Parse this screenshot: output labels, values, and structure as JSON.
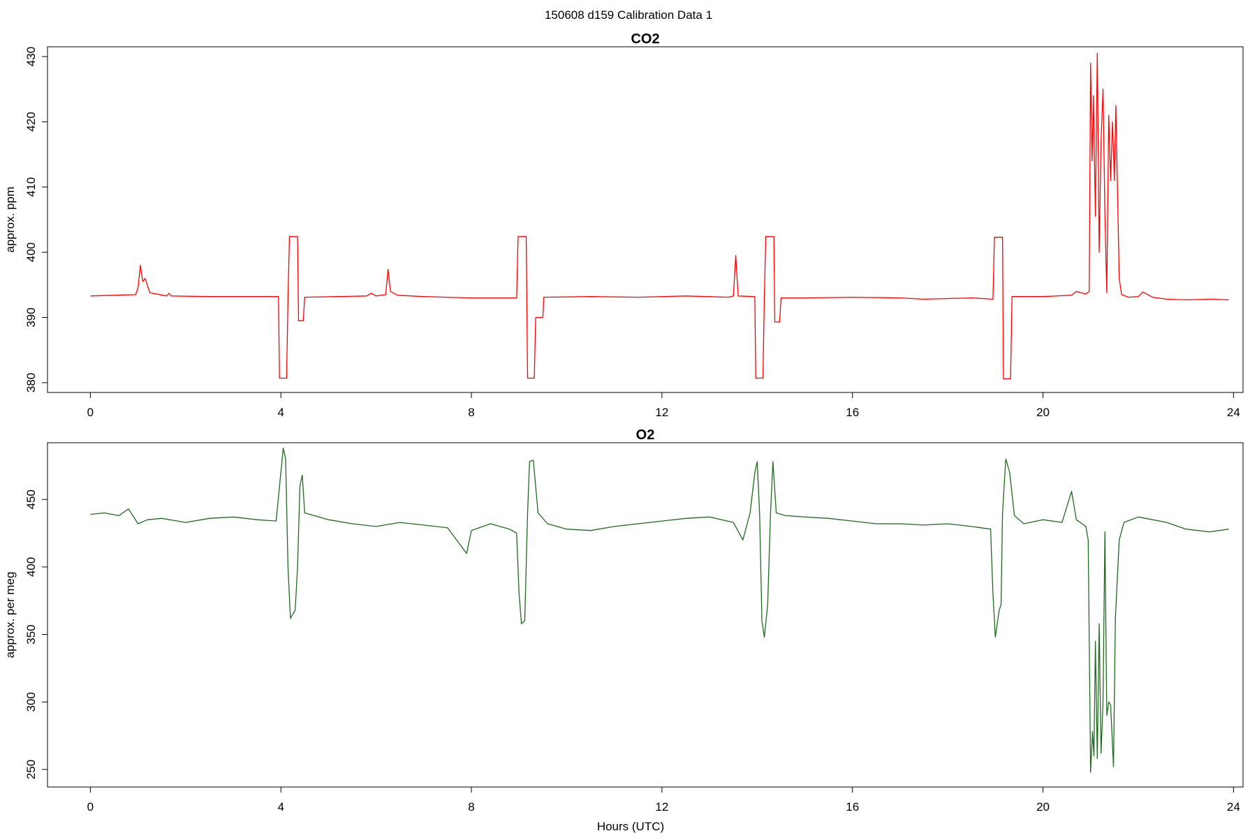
{
  "header": {
    "title": "150608   d159   Calibration Data 1"
  },
  "x_axis": {
    "label": "Hours (UTC)"
  },
  "chart_data": [
    {
      "type": "line",
      "title": "CO2",
      "ylabel": "approx. ppm",
      "xlabel": "",
      "color": "#ff0000",
      "xlim": [
        -0.9,
        24.2
      ],
      "ylim": [
        378.5,
        431.5
      ],
      "x_ticks": [
        0,
        4,
        8,
        12,
        16,
        20,
        24
      ],
      "y_ticks": [
        380,
        390,
        400,
        410,
        420,
        430
      ],
      "grid": false,
      "series": [
        {
          "points": [
            [
              0.0,
              393.3
            ],
            [
              0.5,
              393.4
            ],
            [
              0.95,
              393.5
            ],
            [
              1.0,
              394.5
            ],
            [
              1.05,
              398.0
            ],
            [
              1.1,
              395.5
            ],
            [
              1.15,
              396.0
            ],
            [
              1.25,
              393.8
            ],
            [
              1.6,
              393.3
            ],
            [
              1.65,
              393.7
            ],
            [
              1.7,
              393.3
            ],
            [
              2.5,
              393.2
            ],
            [
              3.5,
              393.2
            ],
            [
              3.95,
              393.2
            ],
            [
              3.97,
              380.7
            ],
            [
              4.12,
              380.7
            ],
            [
              4.15,
              393.0
            ],
            [
              4.18,
              402.4
            ],
            [
              4.35,
              402.4
            ],
            [
              4.37,
              389.5
            ],
            [
              4.47,
              389.5
            ],
            [
              4.5,
              393.1
            ],
            [
              5.2,
              393.2
            ],
            [
              5.8,
              393.3
            ],
            [
              5.9,
              393.7
            ],
            [
              6.0,
              393.3
            ],
            [
              6.2,
              393.5
            ],
            [
              6.25,
              397.4
            ],
            [
              6.3,
              394.0
            ],
            [
              6.45,
              393.4
            ],
            [
              7.0,
              393.2
            ],
            [
              8.0,
              393.0
            ],
            [
              8.5,
              393.0
            ],
            [
              8.95,
              393.0
            ],
            [
              8.98,
              402.4
            ],
            [
              9.15,
              402.4
            ],
            [
              9.18,
              380.7
            ],
            [
              9.32,
              380.7
            ],
            [
              9.35,
              390.0
            ],
            [
              9.5,
              390.0
            ],
            [
              9.52,
              393.1
            ],
            [
              10.5,
              393.2
            ],
            [
              11.5,
              393.1
            ],
            [
              12.5,
              393.3
            ],
            [
              13.4,
              393.1
            ],
            [
              13.5,
              393.3
            ],
            [
              13.55,
              399.5
            ],
            [
              13.6,
              393.3
            ],
            [
              13.95,
              393.2
            ],
            [
              13.97,
              380.7
            ],
            [
              14.12,
              380.7
            ],
            [
              14.15,
              393.0
            ],
            [
              14.18,
              402.4
            ],
            [
              14.35,
              402.4
            ],
            [
              14.37,
              389.3
            ],
            [
              14.47,
              389.3
            ],
            [
              14.5,
              393.0
            ],
            [
              15.0,
              393.0
            ],
            [
              16.0,
              393.1
            ],
            [
              17.0,
              393.0
            ],
            [
              17.5,
              392.8
            ],
            [
              18.5,
              393.0
            ],
            [
              18.95,
              392.8
            ],
            [
              18.98,
              402.3
            ],
            [
              19.15,
              402.3
            ],
            [
              19.17,
              380.6
            ],
            [
              19.32,
              380.6
            ],
            [
              19.35,
              393.2
            ],
            [
              20.0,
              393.2
            ],
            [
              20.6,
              393.4
            ],
            [
              20.7,
              394.0
            ],
            [
              20.9,
              393.6
            ],
            [
              20.97,
              394.0
            ],
            [
              21.0,
              429.0
            ],
            [
              21.03,
              414.0
            ],
            [
              21.06,
              424.0
            ],
            [
              21.1,
              405.5
            ],
            [
              21.14,
              430.5
            ],
            [
              21.18,
              400.0
            ],
            [
              21.22,
              417.0
            ],
            [
              21.26,
              425.0
            ],
            [
              21.3,
              406.0
            ],
            [
              21.34,
              393.8
            ],
            [
              21.38,
              421.0
            ],
            [
              21.42,
              411.0
            ],
            [
              21.46,
              420.0
            ],
            [
              21.5,
              411.0
            ],
            [
              21.53,
              422.5
            ],
            [
              21.6,
              396.0
            ],
            [
              21.65,
              393.5
            ],
            [
              21.8,
              393.1
            ],
            [
              22.0,
              393.2
            ],
            [
              22.1,
              393.9
            ],
            [
              22.3,
              393.1
            ],
            [
              22.6,
              392.8
            ],
            [
              23.0,
              392.7
            ],
            [
              23.5,
              392.8
            ],
            [
              23.9,
              392.7
            ]
          ]
        }
      ]
    },
    {
      "type": "line",
      "title": "O2",
      "ylabel": "approx. per meg",
      "xlabel": "Hours (UTC)",
      "color": "#1e6b1e",
      "xlim": [
        -0.9,
        24.2
      ],
      "ylim": [
        237,
        492
      ],
      "x_ticks": [
        0,
        4,
        8,
        12,
        16,
        20,
        24
      ],
      "y_ticks": [
        250,
        300,
        350,
        400,
        450
      ],
      "grid": false,
      "series": [
        {
          "points": [
            [
              0.0,
              439
            ],
            [
              0.3,
              440
            ],
            [
              0.6,
              438
            ],
            [
              0.8,
              443
            ],
            [
              1.0,
              432
            ],
            [
              1.2,
              435
            ],
            [
              1.5,
              436
            ],
            [
              2.0,
              433
            ],
            [
              2.5,
              436
            ],
            [
              3.0,
              437
            ],
            [
              3.5,
              435
            ],
            [
              3.9,
              434
            ],
            [
              4.0,
              470
            ],
            [
              4.05,
              488
            ],
            [
              4.1,
              480
            ],
            [
              4.15,
              400
            ],
            [
              4.2,
              362
            ],
            [
              4.3,
              368
            ],
            [
              4.35,
              400
            ],
            [
              4.4,
              460
            ],
            [
              4.45,
              468
            ],
            [
              4.5,
              440
            ],
            [
              5.0,
              435
            ],
            [
              5.5,
              432
            ],
            [
              6.0,
              430
            ],
            [
              6.5,
              433
            ],
            [
              7.0,
              431
            ],
            [
              7.5,
              429
            ],
            [
              7.9,
              410
            ],
            [
              8.0,
              427
            ],
            [
              8.4,
              432
            ],
            [
              8.8,
              428
            ],
            [
              8.95,
              425
            ],
            [
              9.0,
              380
            ],
            [
              9.05,
              358
            ],
            [
              9.12,
              360
            ],
            [
              9.18,
              440
            ],
            [
              9.22,
              478
            ],
            [
              9.3,
              479
            ],
            [
              9.4,
              440
            ],
            [
              9.6,
              432
            ],
            [
              10.0,
              428
            ],
            [
              10.5,
              427
            ],
            [
              11.0,
              430
            ],
            [
              11.5,
              432
            ],
            [
              12.0,
              434
            ],
            [
              12.5,
              436
            ],
            [
              13.0,
              437
            ],
            [
              13.5,
              433
            ],
            [
              13.7,
              420
            ],
            [
              13.85,
              440
            ],
            [
              13.95,
              470
            ],
            [
              14.0,
              478
            ],
            [
              14.05,
              440
            ],
            [
              14.1,
              360
            ],
            [
              14.15,
              348
            ],
            [
              14.22,
              372
            ],
            [
              14.28,
              440
            ],
            [
              14.33,
              478
            ],
            [
              14.4,
              440
            ],
            [
              14.6,
              438
            ],
            [
              15.0,
              437
            ],
            [
              15.5,
              436
            ],
            [
              16.0,
              434
            ],
            [
              16.5,
              432
            ],
            [
              17.0,
              432
            ],
            [
              17.5,
              431
            ],
            [
              18.0,
              432
            ],
            [
              18.5,
              430
            ],
            [
              18.9,
              428
            ],
            [
              18.95,
              380
            ],
            [
              19.0,
              348
            ],
            [
              19.08,
              368
            ],
            [
              19.12,
              372
            ],
            [
              19.15,
              440
            ],
            [
              19.22,
              480
            ],
            [
              19.3,
              470
            ],
            [
              19.4,
              438
            ],
            [
              19.6,
              432
            ],
            [
              20.0,
              435
            ],
            [
              20.4,
              433
            ],
            [
              20.6,
              456
            ],
            [
              20.7,
              435
            ],
            [
              20.9,
              430
            ],
            [
              20.95,
              420
            ],
            [
              21.0,
              248
            ],
            [
              21.04,
              278
            ],
            [
              21.07,
              260
            ],
            [
              21.1,
              345
            ],
            [
              21.14,
              258
            ],
            [
              21.18,
              358
            ],
            [
              21.22,
              262
            ],
            [
              21.26,
              300
            ],
            [
              21.3,
              426
            ],
            [
              21.34,
              290
            ],
            [
              21.38,
              300
            ],
            [
              21.42,
              298
            ],
            [
              21.48,
              252
            ],
            [
              21.52,
              362
            ],
            [
              21.6,
              420
            ],
            [
              21.7,
              433
            ],
            [
              22.0,
              437
            ],
            [
              22.3,
              435
            ],
            [
              22.6,
              433
            ],
            [
              23.0,
              428
            ],
            [
              23.5,
              426
            ],
            [
              23.9,
              428
            ]
          ]
        }
      ]
    }
  ]
}
